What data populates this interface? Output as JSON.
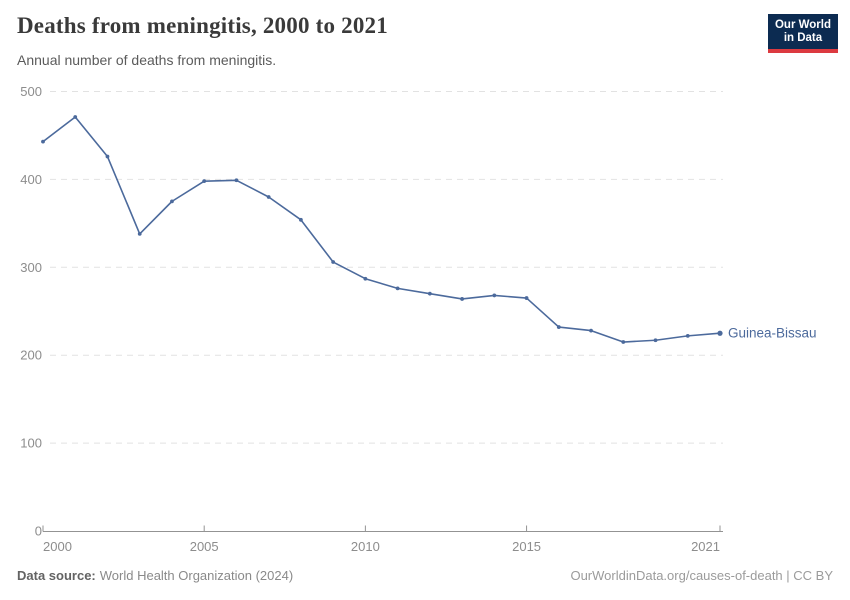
{
  "header": {
    "title": "Deaths from meningitis, 2000 to 2021",
    "subtitle": "Annual number of deaths from meningitis.",
    "logo": {
      "line1": "Our World",
      "line2": "in Data"
    }
  },
  "footer": {
    "source_label": "Data source:",
    "source_text": "World Health Organization (2024)",
    "credit": "OurWorldinData.org/causes-of-death | CC BY"
  },
  "colors": {
    "line": "#4c6a9c",
    "entity_label": "#4c6a9c",
    "grid": "#e2e2e2",
    "axis": "#939393",
    "tick_text": "#8d8d8d",
    "logo_bg": "#0c2b51",
    "logo_stripe": "#dc3a40"
  },
  "chart_data": {
    "type": "line",
    "title": "Deaths from meningitis, 2000 to 2021",
    "subtitle": "Annual number of deaths from meningitis.",
    "xlabel": "",
    "ylabel": "",
    "xlim": [
      2000,
      2021
    ],
    "ylim": [
      0,
      500
    ],
    "x_ticks": [
      2000,
      2005,
      2010,
      2015,
      2021
    ],
    "y_ticks": [
      0,
      100,
      200,
      300,
      400,
      500
    ],
    "grid": "horizontal-dashed",
    "legend_position": "end-of-line-label",
    "series": [
      {
        "name": "Guinea-Bissau",
        "x": [
          2000,
          2001,
          2002,
          2003,
          2004,
          2005,
          2006,
          2007,
          2008,
          2009,
          2010,
          2011,
          2012,
          2013,
          2014,
          2015,
          2016,
          2017,
          2018,
          2019,
          2020,
          2021
        ],
        "values": [
          443,
          471,
          426,
          338,
          375,
          398,
          399,
          380,
          354,
          306,
          287,
          276,
          270,
          264,
          268,
          265,
          232,
          228,
          215,
          217,
          222,
          225
        ]
      }
    ]
  }
}
